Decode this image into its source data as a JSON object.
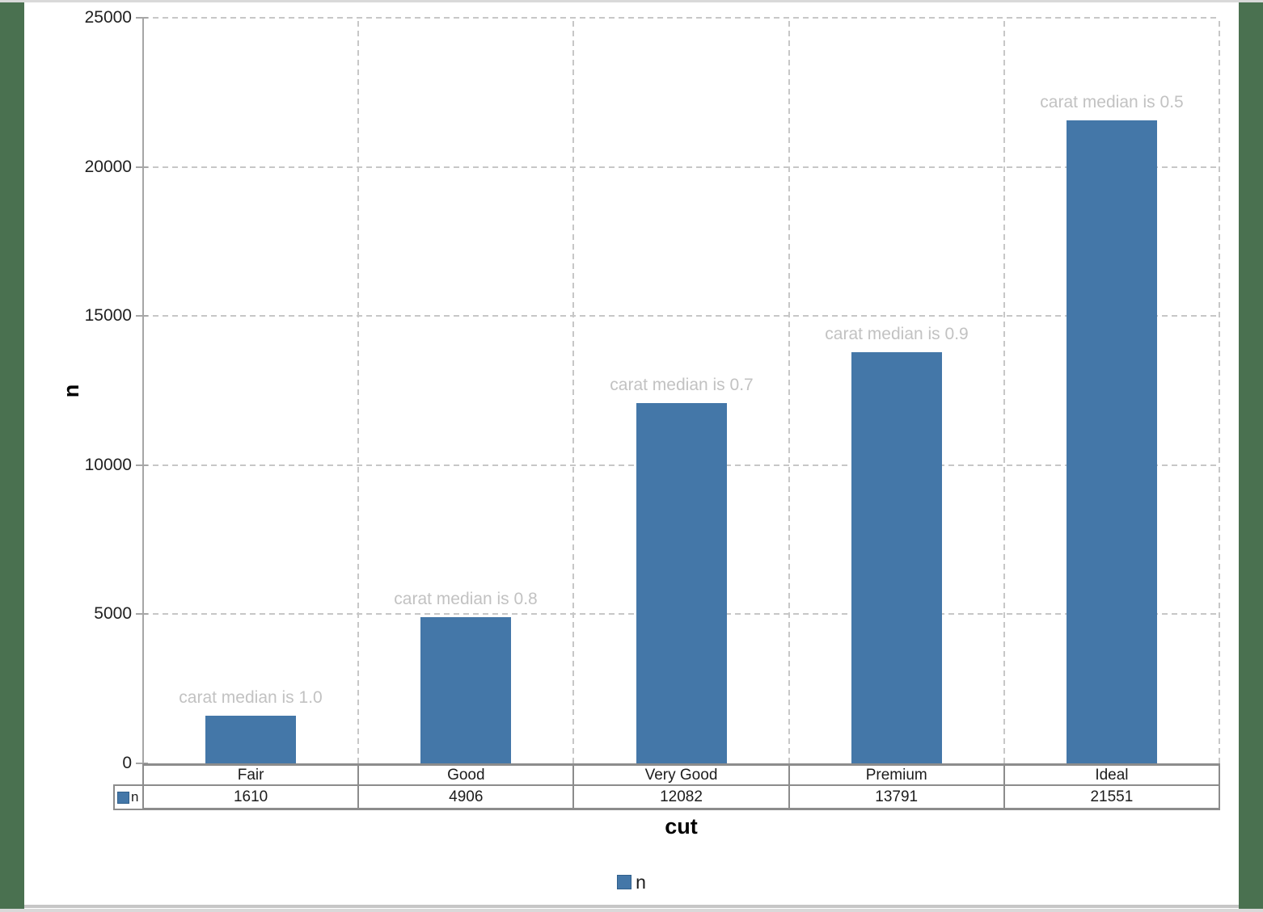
{
  "page": {
    "desktop_color": "#4a7150",
    "frame_line_color": "#c6c6c6",
    "background": "#ffffff"
  },
  "chart_data": {
    "type": "bar",
    "title": "",
    "xlabel": "cut",
    "ylabel": "n",
    "categories": [
      "Fair",
      "Good",
      "Very Good",
      "Premium",
      "Ideal"
    ],
    "series": [
      {
        "name": "n",
        "color": "#4477a8",
        "values": [
          1610,
          4906,
          12082,
          13791,
          21551
        ]
      }
    ],
    "annotations": [
      "carat median is 1.0",
      "carat median is 0.8",
      "carat median is 0.7",
      "carat median is 0.9",
      "carat median is 0.5"
    ],
    "ylim": [
      0,
      25000
    ],
    "yticks": [
      0,
      5000,
      10000,
      15000,
      20000,
      25000
    ],
    "ytick_labels": [
      "0",
      "5000",
      "10000",
      "15000",
      "20000",
      "25000"
    ],
    "grid": true,
    "gridline_style": "dashed",
    "legend": {
      "position": "bottom",
      "entries": [
        "n"
      ]
    },
    "data_table": {
      "row_label": "n",
      "header": [
        "Fair",
        "Good",
        "Very Good",
        "Premium",
        "Ideal"
      ],
      "values": [
        "1610",
        "4906",
        "12082",
        "13791",
        "21551"
      ]
    },
    "colors": {
      "bar": "#4477a8",
      "annotation_text": "#c2c2c2",
      "gridline": "#c7c7c7",
      "axis_line": "#a6a6a6",
      "table_border": "#8c8c8c"
    }
  }
}
